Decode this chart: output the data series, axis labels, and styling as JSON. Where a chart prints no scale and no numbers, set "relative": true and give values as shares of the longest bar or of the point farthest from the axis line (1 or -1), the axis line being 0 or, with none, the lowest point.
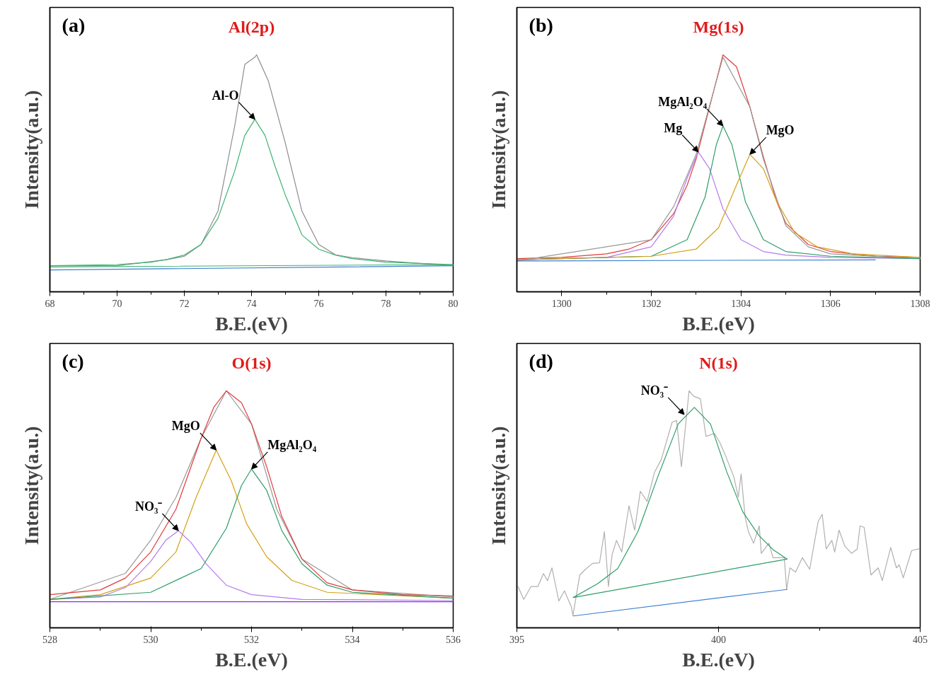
{
  "chart_data": [
    {
      "type": "line",
      "title": "Al(2p)",
      "xlabel": "B.E.(eV)",
      "ylabel": "Intensity(a.u.)",
      "relative": true,
      "xlim": [
        68,
        80
      ],
      "xticks": [
        68,
        70,
        72,
        74,
        76,
        78,
        80
      ],
      "annotations": [
        "(a)",
        {
          "text": "Al-O",
          "x": 74.1,
          "y": 0.728
        }
      ],
      "series": [
        {
          "color": "#8c8c8c",
          "x": [
            68,
            69,
            70,
            71,
            71.5,
            72,
            72.5,
            73,
            73.5,
            73.8,
            74.1,
            74.15,
            74.5,
            75,
            75.5,
            76,
            76.5,
            77,
            78,
            79,
            80
          ],
          "values": [
            0.11,
            0.11,
            0.11,
            0.127,
            0.136,
            0.15,
            0.2,
            0.34,
            0.7,
            0.96,
            0.99,
            1.0,
            0.89,
            0.63,
            0.34,
            0.2,
            0.156,
            0.144,
            0.13,
            0.12,
            0.11
          ]
        },
        {
          "color": "#3cb371",
          "x": [
            68,
            70,
            71,
            71.5,
            72,
            72.5,
            73,
            73.5,
            73.8,
            74.1,
            74.4,
            74.7,
            75,
            75.5,
            76,
            76.5,
            77,
            78,
            79,
            80
          ],
          "values": [
            0.11,
            0.115,
            0.125,
            0.137,
            0.155,
            0.2,
            0.31,
            0.51,
            0.66,
            0.728,
            0.66,
            0.53,
            0.41,
            0.24,
            0.18,
            0.155,
            0.14,
            0.125,
            0.12,
            0.115
          ]
        },
        {
          "color": "#3d7fd0",
          "x": [
            68,
            80
          ],
          "values": [
            0.092,
            0.11
          ]
        },
        {
          "color": "#3cb371",
          "x": [
            68,
            80
          ],
          "values": [
            0.105,
            0.115
          ]
        }
      ]
    },
    {
      "type": "line",
      "title": "Mg(1s)",
      "xlabel": "B.E.(eV)",
      "ylabel": "Intensity(a.u.)",
      "relative": true,
      "xlim": [
        1299,
        1308
      ],
      "xticks": [
        1300,
        1302,
        1304,
        1306,
        1308
      ],
      "annotations": [
        "(b)",
        {
          "text": "Mg",
          "x": 1303.05,
          "y": 0.59
        },
        {
          "text": "MgAl₂O₄",
          "x": 1303.6,
          "y": 0.7
        },
        {
          "text": "MgO",
          "x": 1304.2,
          "y": 0.58
        }
      ],
      "series": [
        {
          "color": "#e03c3c",
          "x": [
            1299,
            1300,
            1301,
            1301.5,
            1302,
            1302.5,
            1302.8,
            1303,
            1303.3,
            1303.6,
            1303.9,
            1304.2,
            1304.5,
            1304.8,
            1305,
            1305.5,
            1306,
            1307,
            1308
          ],
          "values": [
            0.14,
            0.145,
            0.16,
            0.18,
            0.22,
            0.33,
            0.45,
            0.56,
            0.78,
            1.0,
            0.95,
            0.78,
            0.57,
            0.38,
            0.29,
            0.2,
            0.17,
            0.15,
            0.145
          ]
        },
        {
          "color": "#999999",
          "x": [
            1299,
            1302,
            1302.5,
            1303,
            1303.6,
            1304.2,
            1304.5,
            1305,
            1305.5,
            1306,
            1308
          ],
          "values": [
            0.13,
            0.22,
            0.36,
            0.58,
            0.99,
            0.78,
            0.56,
            0.28,
            0.19,
            0.16,
            0.14
          ]
        },
        {
          "color": "#b57bee",
          "x": [
            1299,
            1301,
            1302,
            1302.5,
            1302.8,
            1303.05,
            1303.3,
            1303.6,
            1304,
            1304.5,
            1305,
            1306,
            1308
          ],
          "values": [
            0.135,
            0.145,
            0.19,
            0.32,
            0.48,
            0.59,
            0.52,
            0.35,
            0.22,
            0.17,
            0.155,
            0.145,
            0.14
          ]
        },
        {
          "color": "#2e9e6a",
          "x": [
            1299,
            1302,
            1302.8,
            1303.2,
            1303.45,
            1303.6,
            1303.8,
            1304.1,
            1304.5,
            1305,
            1306,
            1308
          ],
          "values": [
            0.135,
            0.15,
            0.22,
            0.4,
            0.62,
            0.7,
            0.62,
            0.38,
            0.22,
            0.17,
            0.15,
            0.14
          ]
        },
        {
          "color": "#d4a017",
          "x": [
            1299,
            1302,
            1303,
            1303.5,
            1303.9,
            1304.2,
            1304.5,
            1304.8,
            1305.2,
            1305.7,
            1306.5,
            1308
          ],
          "values": [
            0.135,
            0.15,
            0.18,
            0.27,
            0.45,
            0.58,
            0.52,
            0.38,
            0.25,
            0.19,
            0.16,
            0.145
          ]
        },
        {
          "color": "#3d7fd0",
          "x": [
            1299,
            1307
          ],
          "values": [
            0.13,
            0.135
          ]
        }
      ]
    },
    {
      "type": "line",
      "title": "O(1s)",
      "xlabel": "B.E.(eV)",
      "ylabel": "Intensity(a.u.)",
      "relative": true,
      "xlim": [
        528,
        536
      ],
      "xticks": [
        528,
        530,
        532,
        534,
        536
      ],
      "annotations": [
        "(c)",
        {
          "text": "NO₃⁻",
          "x": 530.55,
          "y": 0.41
        },
        {
          "text": "MgO",
          "x": 531.3,
          "y": 0.75
        },
        {
          "text": "MgAl₂O₄",
          "x": 532,
          "y": 0.67
        }
      ],
      "series": [
        {
          "color": "#999999",
          "x": [
            528,
            529.5,
            530,
            530.5,
            531,
            531.5,
            532,
            532.5,
            533,
            534,
            536
          ],
          "values": [
            0.12,
            0.23,
            0.37,
            0.55,
            0.8,
            1.0,
            0.86,
            0.5,
            0.29,
            0.16,
            0.13
          ]
        },
        {
          "color": "#e03c3c",
          "x": [
            528,
            529,
            529.5,
            530,
            530.5,
            531,
            531.25,
            531.5,
            531.8,
            532,
            532.3,
            532.6,
            533,
            533.5,
            534,
            535,
            536
          ],
          "values": [
            0.14,
            0.16,
            0.21,
            0.32,
            0.5,
            0.8,
            0.93,
            1.0,
            0.95,
            0.86,
            0.68,
            0.47,
            0.29,
            0.19,
            0.16,
            0.14,
            0.135
          ]
        },
        {
          "color": "#b57bee",
          "x": [
            528,
            529,
            529.5,
            530,
            530.3,
            530.55,
            530.8,
            531.1,
            531.5,
            532,
            533,
            536
          ],
          "values": [
            0.12,
            0.13,
            0.17,
            0.28,
            0.37,
            0.41,
            0.36,
            0.27,
            0.18,
            0.14,
            0.12,
            0.115
          ]
        },
        {
          "color": "#d4a017",
          "x": [
            528,
            529,
            530,
            530.5,
            530.9,
            531.3,
            531.6,
            531.9,
            532.3,
            532.8,
            533.5,
            536
          ],
          "values": [
            0.12,
            0.14,
            0.21,
            0.32,
            0.55,
            0.75,
            0.62,
            0.44,
            0.3,
            0.2,
            0.15,
            0.125
          ]
        },
        {
          "color": "#2e9e6a",
          "x": [
            528,
            530,
            531,
            531.5,
            531.8,
            532,
            532.3,
            532.6,
            533,
            533.5,
            534,
            536
          ],
          "values": [
            0.12,
            0.15,
            0.25,
            0.42,
            0.6,
            0.67,
            0.58,
            0.41,
            0.27,
            0.18,
            0.15,
            0.125
          ]
        },
        {
          "color": "#8a2be2",
          "x": [
            528,
            536
          ],
          "values": [
            0.11,
            0.11
          ]
        }
      ]
    },
    {
      "type": "line",
      "title": "N(1s)",
      "xlabel": "B.E.(eV)",
      "ylabel": "Intensity(a.u.)",
      "relative": true,
      "xlim": [
        395,
        405
      ],
      "xticks": [
        395,
        400,
        405
      ],
      "annotations": [
        "(d)",
        {
          "text": "NO₃⁻",
          "x": 399.15,
          "y": 0.9
        }
      ],
      "series": [
        {
          "color": "#b0b0b0",
          "x": [
            395.03,
            395.17,
            395.35,
            395.52,
            395.66,
            395.76,
            395.87,
            396.04,
            396.18,
            396.35,
            396.39,
            396.56,
            396.7,
            396.88,
            397.05,
            397.17,
            397.27,
            397.36,
            397.47,
            397.6,
            397.78,
            397.92,
            398.06,
            398.23,
            398.41,
            398.58,
            398.85,
            398.96,
            399.08,
            399.27,
            399.38,
            399.55,
            399.69,
            399.9,
            400.03,
            400.17,
            400.38,
            400.49,
            400.56,
            400.66,
            400.74,
            400.87,
            401.01,
            401.06,
            401.25,
            401.35,
            401.63,
            401.69,
            401.77,
            401.91,
            402.08,
            402.26,
            402.47,
            402.57,
            402.67,
            402.81,
            402.88,
            402.99,
            403.13,
            403.3,
            403.44,
            403.51,
            403.61,
            403.78,
            403.96,
            404.06,
            404.27,
            404.41,
            404.48,
            404.58,
            404.79,
            404.97
          ],
          "values": [
            0.174,
            0.12,
            0.174,
            0.174,
            0.229,
            0.199,
            0.253,
            0.113,
            0.156,
            0.089,
            0.052,
            0.223,
            0.247,
            0.272,
            0.274,
            0.406,
            0.174,
            0.308,
            0.369,
            0.32,
            0.515,
            0.412,
            0.576,
            0.533,
            0.655,
            0.71,
            0.868,
            0.875,
            0.68,
            1.0,
            0.978,
            0.966,
            0.808,
            0.82,
            0.783,
            0.728,
            0.637,
            0.552,
            0.649,
            0.466,
            0.406,
            0.357,
            0.43,
            0.314,
            0.357,
            0.296,
            0.296,
            0.162,
            0.253,
            0.235,
            0.296,
            0.247,
            0.448,
            0.479,
            0.333,
            0.369,
            0.32,
            0.412,
            0.345,
            0.314,
            0.333,
            0.43,
            0.424,
            0.223,
            0.253,
            0.199,
            0.339,
            0.253,
            0.266,
            0.211,
            0.326,
            0.333
          ]
        },
        {
          "color": "#2e9e6a",
          "x": [
            396.4,
            397,
            397.5,
            398,
            398.5,
            399,
            399.4,
            399.8,
            400.2,
            400.6,
            401,
            401.35,
            401.7
          ],
          "values": [
            0.128,
            0.186,
            0.25,
            0.405,
            0.64,
            0.86,
            0.93,
            0.86,
            0.66,
            0.49,
            0.39,
            0.33,
            0.29
          ]
        },
        {
          "color": "#3d7fd0",
          "x": [
            396.4,
            401.7
          ],
          "values": [
            0.05,
            0.162
          ]
        },
        {
          "color": "#2e9e6a",
          "x": [
            396.4,
            401.7
          ],
          "values": [
            0.128,
            0.29
          ]
        }
      ]
    }
  ]
}
